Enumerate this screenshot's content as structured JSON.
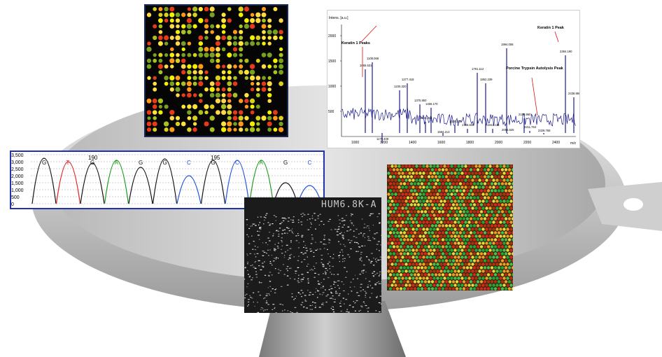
{
  "chromatogram": {
    "y_ticks": [
      "3,500",
      "3,000",
      "2,500",
      "2,000",
      "1,500",
      "1,000",
      "500",
      "0"
    ],
    "position_labels": [
      "190",
      "195"
    ],
    "bases": [
      "G",
      "T",
      "G",
      "A",
      "G",
      "G",
      "C",
      "G",
      "C",
      "A",
      "G",
      "C"
    ],
    "base_colors": {
      "G": "#111111",
      "T": "#e02020",
      "A": "#1a9a1a",
      "C": "#2050e0"
    }
  },
  "mass_spectrum": {
    "y_axis_title": "Intens. [a.u.]",
    "y_ticks": [
      "2000",
      "1500",
      "1000",
      "500"
    ],
    "x_ticks": [
      "1000",
      "1200",
      "1400",
      "1600",
      "1800",
      "2000",
      "2200",
      "2400"
    ],
    "x_unit": "m/z",
    "peak_labels": [
      "1179.409",
      "1230.320",
      "1277.418",
      "1375.850",
      "1456.170",
      "1065.531",
      "1108.066",
      "1434.314",
      "1638.337",
      "1584.213",
      "1745.839",
      "1791.112",
      "1852.239",
      "1941.133",
      "1994.008",
      "2054.625",
      "2156.960",
      "2211.764",
      "2326.765",
      "2384.190",
      "2438.950"
    ],
    "annotations": [
      "Keratin 1 Peaks",
      "Porcine Trypsin Autolysis Peak",
      "Keratin 1 Peak"
    ]
  },
  "scan_image": {
    "label": "HUM6.8K-A"
  }
}
